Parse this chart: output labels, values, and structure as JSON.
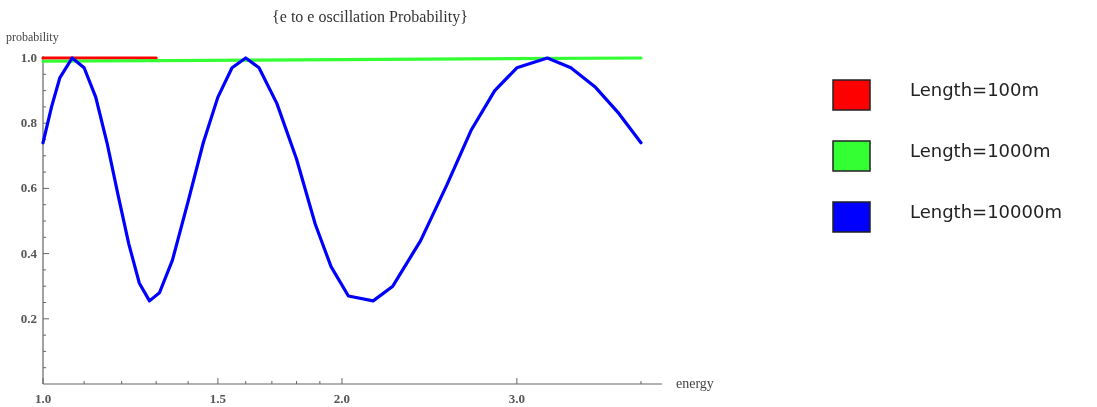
{
  "chart_data": {
    "type": "line",
    "title": "{e to e oscillation Probability}",
    "xlabel": "energy",
    "ylabel": "probability",
    "log": "x",
    "xlim": [
      1,
      4.2
    ],
    "ylim": [
      0,
      1.0
    ],
    "xticks": [
      {
        "value": 1,
        "label": "1.0"
      },
      {
        "value": 1.1,
        "label": null
      },
      {
        "value": 1.2,
        "label": null
      },
      {
        "value": 1.3,
        "label": null
      },
      {
        "value": 1.4,
        "label": null
      },
      1.5,
      {
        "value": 1.6,
        "label": null
      },
      {
        "value": 1.7,
        "label": null
      },
      {
        "value": 1.8,
        "label": null
      },
      {
        "value": 1.9,
        "label": null
      },
      {
        "value": 2,
        "label": "2.0"
      },
      {
        "value": 3,
        "label": "3.0"
      },
      {
        "value": 4,
        "label": null
      }
    ],
    "yticks": [
      {
        "value": 0.05,
        "label": null
      },
      {
        "value": 0.1,
        "label": null
      },
      {
        "value": 0.15,
        "label": null
      },
      0.2,
      {
        "value": 0.25,
        "label": null
      },
      {
        "value": 0.3,
        "label": null
      },
      {
        "value": 0.35,
        "label": null
      },
      0.4,
      {
        "value": 0.45,
        "label": null
      },
      {
        "value": 0.5,
        "label": null
      },
      {
        "value": 0.55,
        "label": null
      },
      0.6,
      {
        "value": 0.65,
        "label": null
      },
      {
        "value": 0.7,
        "label": null
      },
      {
        "value": 0.75,
        "label": null
      },
      0.8,
      {
        "value": 0.85,
        "label": null
      },
      {
        "value": 0.9,
        "label": null
      },
      {
        "value": 0.95,
        "label": null
      },
      {
        "value": 1,
        "label": "1.0"
      }
    ],
    "grid": false,
    "legend": "right",
    "marker": "none",
    "line_style": "solid",
    "series": [
      {
        "name": "Length=100m",
        "color": "#ff0000",
        "x": [
          1,
          1.3
        ],
        "values": [
          1.0,
          1.0
        ]
      },
      {
        "name": "Length=1000m",
        "color": "#33ff33",
        "x": [
          1,
          4
        ],
        "values": [
          0.99,
          1.0
        ]
      },
      {
        "name": "Length=10000m",
        "color": "#0000ff",
        "x": [
          1.0,
          1.02,
          1.04,
          1.07,
          1.1,
          1.13,
          1.16,
          1.19,
          1.22,
          1.25,
          1.28,
          1.31,
          1.35,
          1.4,
          1.45,
          1.5,
          1.55,
          1.6,
          1.65,
          1.72,
          1.8,
          1.88,
          1.95,
          2.03,
          2.15,
          2.25,
          2.4,
          2.55,
          2.7,
          2.85,
          3.0,
          3.22,
          3.4,
          3.6,
          3.8,
          4.0
        ],
        "values": [
          0.74,
          0.85,
          0.94,
          1.0,
          0.97,
          0.88,
          0.74,
          0.58,
          0.43,
          0.31,
          0.255,
          0.28,
          0.38,
          0.56,
          0.74,
          0.88,
          0.97,
          1.0,
          0.97,
          0.86,
          0.69,
          0.49,
          0.36,
          0.27,
          0.255,
          0.3,
          0.44,
          0.61,
          0.78,
          0.9,
          0.97,
          1.0,
          0.97,
          0.91,
          0.83,
          0.74
        ]
      }
    ]
  }
}
